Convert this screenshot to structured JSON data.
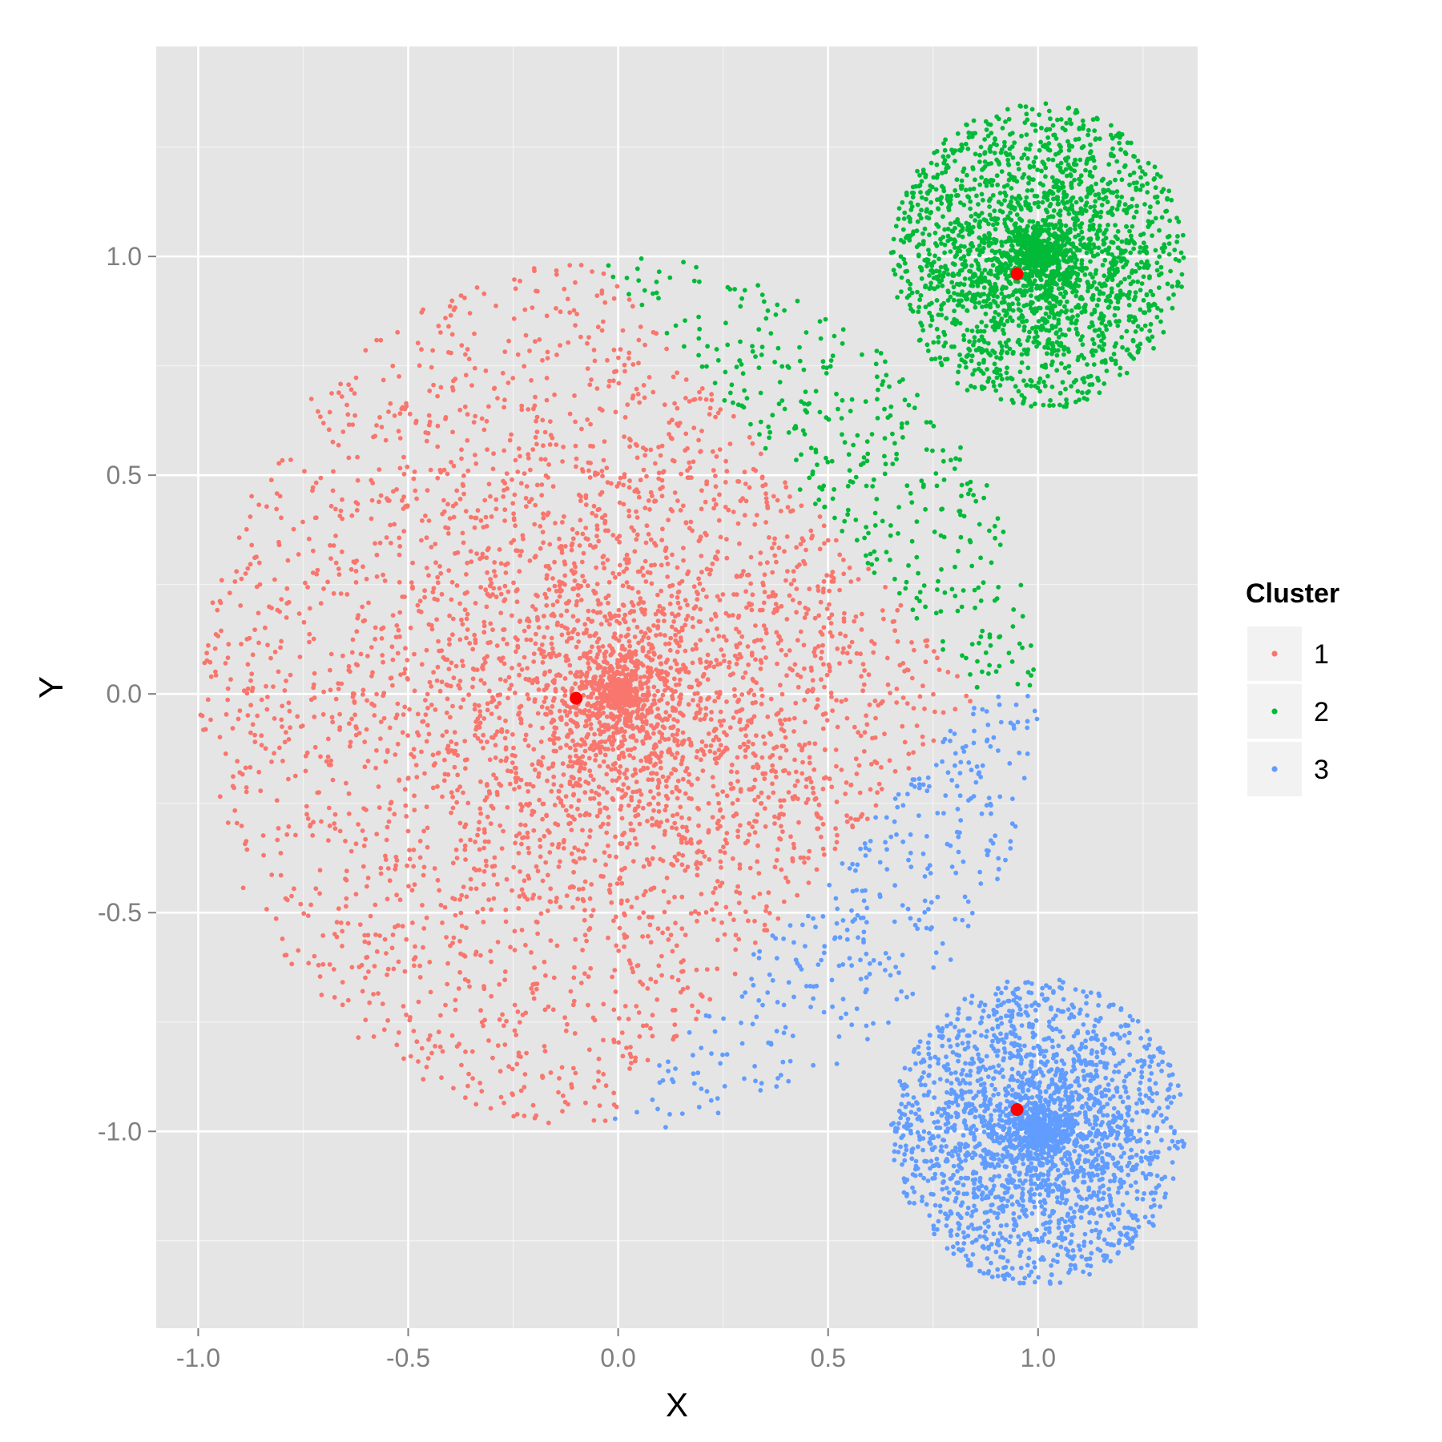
{
  "chart_data": {
    "type": "scatter",
    "title": "",
    "xlabel": "X",
    "ylabel": "Y",
    "xlim": [
      -1.1,
      1.38
    ],
    "ylim": [
      -1.45,
      1.48
    ],
    "x_ticks": [
      -1.0,
      -0.5,
      0.0,
      0.5,
      1.0
    ],
    "x_tick_labels": [
      "-1.0",
      "-0.5",
      "0.0",
      "0.5",
      "1.0"
    ],
    "y_ticks": [
      -1.0,
      -0.5,
      0.0,
      0.5,
      1.0
    ],
    "y_tick_labels": [
      "-1.0",
      "-0.5",
      "0.0",
      "0.5",
      "1.0"
    ],
    "grid": true,
    "legend": {
      "title": "Cluster",
      "position": "right",
      "entries": [
        {
          "label": "1",
          "color": "#F8766D"
        },
        {
          "label": "2",
          "color": "#00BA38"
        },
        {
          "label": "3",
          "color": "#619CFF"
        }
      ]
    },
    "data_regions": [
      {
        "shape": "disk",
        "center": [
          0,
          0
        ],
        "radius": 1.0,
        "points": 5000
      },
      {
        "shape": "disk",
        "center": [
          1.0,
          1.0
        ],
        "radius": 0.35,
        "points": 2500
      },
      {
        "shape": "disk",
        "center": [
          1.0,
          -1.0
        ],
        "radius": 0.35,
        "points": 2500
      }
    ],
    "assignment_centers": [
      {
        "cluster": "1",
        "x": -0.1,
        "y": -0.01
      },
      {
        "cluster": "2",
        "x": 0.95,
        "y": 0.96
      },
      {
        "cluster": "3",
        "x": 0.95,
        "y": -0.95
      }
    ],
    "centroids": [
      {
        "x": -0.1,
        "y": -0.01
      },
      {
        "x": 0.95,
        "y": 0.96
      },
      {
        "x": 0.95,
        "y": -0.95
      }
    ],
    "centroid_color": "#FF0000",
    "panel_background": "#E5E5E5",
    "grid_color": "#FFFFFF"
  }
}
